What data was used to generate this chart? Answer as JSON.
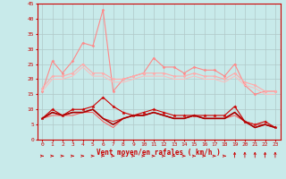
{
  "xlabel": "Vent moyen/en rafales ( km/h )",
  "bg_color": "#c8eaea",
  "grid_color": "#b0c8c8",
  "x": [
    0,
    1,
    2,
    3,
    4,
    5,
    6,
    7,
    8,
    9,
    10,
    11,
    12,
    13,
    14,
    15,
    16,
    17,
    18,
    19,
    20,
    21,
    22,
    23
  ],
  "series": [
    {
      "data": [
        16,
        26,
        22,
        26,
        32,
        31,
        43,
        16,
        20,
        21,
        22,
        27,
        24,
        24,
        22,
        24,
        23,
        23,
        21,
        25,
        18,
        15,
        16,
        16
      ],
      "color": "#ff8888",
      "lw": 0.8,
      "marker": "D",
      "ms": 1.5
    },
    {
      "data": [
        17,
        21,
        21,
        22,
        25,
        22,
        22,
        20,
        20,
        21,
        22,
        22,
        22,
        21,
        21,
        22,
        21,
        21,
        20,
        22,
        19,
        18,
        16,
        16
      ],
      "color": "#ffaaaa",
      "lw": 0.8,
      "marker": "D",
      "ms": 1.5
    },
    {
      "data": [
        16,
        20,
        20,
        21,
        24,
        21,
        21,
        19,
        19,
        20,
        21,
        21,
        21,
        20,
        20,
        21,
        20,
        20,
        19,
        21,
        18,
        17,
        15,
        15
      ],
      "color": "#ffbbbb",
      "lw": 0.7,
      "marker": null,
      "ms": 0
    },
    {
      "data": [
        7,
        10,
        8,
        10,
        10,
        11,
        14,
        11,
        9,
        8,
        9,
        10,
        9,
        8,
        8,
        8,
        8,
        8,
        8,
        11,
        6,
        5,
        6,
        4
      ],
      "color": "#cc0000",
      "lw": 0.8,
      "marker": "*",
      "ms": 2.5
    },
    {
      "data": [
        7,
        9,
        8,
        9,
        9,
        10,
        7,
        6,
        7,
        8,
        8,
        9,
        8,
        7,
        7,
        8,
        7,
        7,
        7,
        9,
        6,
        5,
        5,
        4
      ],
      "color": "#dd3333",
      "lw": 0.8,
      "marker": null,
      "ms": 0
    },
    {
      "data": [
        7,
        8,
        8,
        8,
        9,
        9,
        6,
        4,
        7,
        8,
        8,
        9,
        8,
        7,
        7,
        8,
        7,
        7,
        7,
        8,
        6,
        4,
        5,
        4
      ],
      "color": "#ff5555",
      "lw": 0.7,
      "marker": null,
      "ms": 0
    },
    {
      "data": [
        7,
        9,
        8,
        9,
        9,
        10,
        7,
        5,
        7,
        8,
        8,
        9,
        8,
        7,
        7,
        8,
        7,
        7,
        7,
        9,
        6,
        4,
        5,
        4
      ],
      "color": "#aa0000",
      "lw": 1.2,
      "marker": null,
      "ms": 0
    }
  ],
  "ylim": [
    0,
    45
  ],
  "yticks": [
    0,
    5,
    10,
    15,
    20,
    25,
    30,
    35,
    40,
    45
  ],
  "xticks": [
    0,
    1,
    2,
    3,
    4,
    5,
    6,
    7,
    8,
    9,
    10,
    11,
    12,
    13,
    14,
    15,
    16,
    17,
    18,
    19,
    20,
    21,
    22,
    23
  ]
}
